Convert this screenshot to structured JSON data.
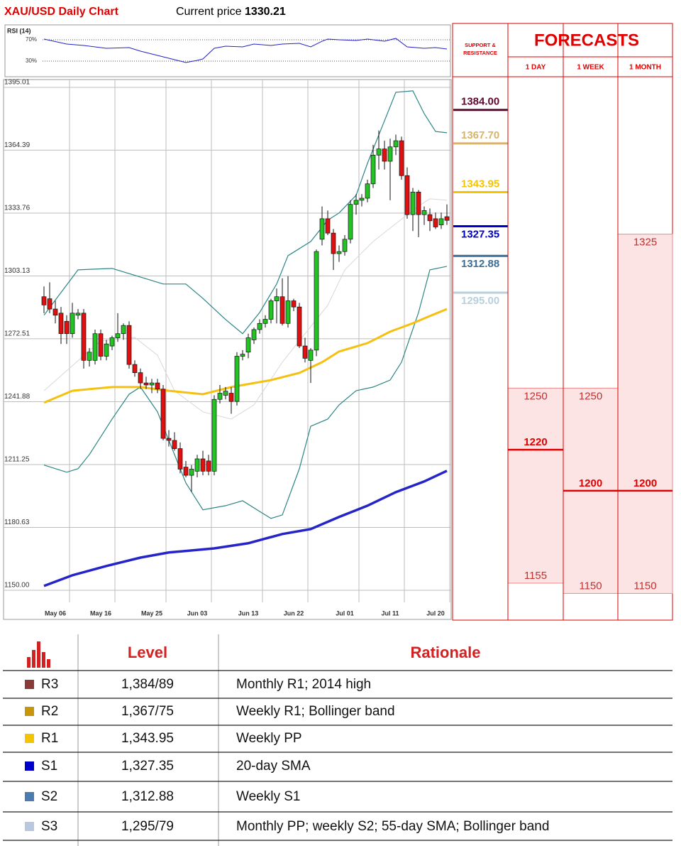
{
  "header": {
    "title": "XAU/USD Daily Chart",
    "current_price_label": "Current price",
    "current_price": 1330.21
  },
  "chart_data": [
    {
      "type": "candlestick",
      "xlim": [
        0,
        71
      ],
      "ylim": [
        1144.1,
        1398.8
      ],
      "yticks": [
        1395.01,
        1364.39,
        1333.76,
        1303.13,
        1272.51,
        1241.88,
        1211.25,
        1180.63,
        {
          "value": 1150,
          "label": "1150.00"
        }
      ],
      "grid": true,
      "up_color": "#22c322",
      "down_color": "#e01010",
      "categories": [
        null,
        null,
        "May 06",
        null,
        null,
        null,
        null,
        null,
        null,
        null,
        "May 16",
        null,
        null,
        null,
        null,
        null,
        null,
        null,
        null,
        "May 25",
        null,
        null,
        null,
        null,
        null,
        null,
        null,
        "Jun 03",
        null,
        null,
        null,
        null,
        null,
        null,
        null,
        null,
        "Jun 13",
        null,
        null,
        null,
        null,
        null,
        null,
        null,
        "Jun 22",
        null,
        null,
        null,
        null,
        null,
        null,
        null,
        null,
        "Jul 01",
        null,
        null,
        null,
        null,
        null,
        null,
        null,
        "Jul 11",
        null,
        null,
        null,
        null,
        null,
        null,
        null,
        "Jul 20",
        null,
        null
      ],
      "open": [
        1293,
        1292,
        1287,
        1285,
        1281,
        1275,
        1284,
        1285,
        1262,
        1262,
        1275,
        1264,
        1269,
        1273,
        1275,
        1279,
        1260,
        1256,
        1251,
        1250,
        1251,
        1248,
        1224,
        1223,
        1219,
        1210,
        1206,
        1208,
        1214,
        1213,
        1208,
        1243,
        1245,
        1246,
        1242,
        1264,
        1266,
        1272,
        1277,
        1280,
        1282,
        1291,
        1293,
        1280,
        1291,
        1288,
        1269,
        1262,
        1267,
        1321,
        1331,
        1324,
        1314,
        1315,
        1321,
        1338,
        1340,
        1341,
        1348,
        1362,
        1365,
        1359,
        1366,
        1369,
        1352,
        1333,
        1344,
        1333,
        1333,
        1331,
        1328,
        1332
      ],
      "high": [
        1298,
        1300,
        1291,
        1288,
        1284,
        1290,
        1287,
        1287,
        1268,
        1277,
        1277,
        1272,
        1274,
        1285,
        1280,
        1281,
        1262,
        1258,
        1254,
        1253,
        1253,
        1250,
        1228,
        1227,
        1222,
        1213,
        1211,
        1216,
        1218,
        1216,
        1245,
        1250,
        1249,
        1249,
        1266,
        1267,
        1275,
        1278,
        1282,
        1284,
        1292,
        1297,
        1302,
        1303,
        1292,
        1290,
        1273,
        1268,
        1316,
        1337,
        1335,
        1326,
        1318,
        1323,
        1340,
        1343,
        1343,
        1350,
        1367,
        1374,
        1369,
        1370,
        1372,
        1371,
        1356,
        1346,
        1345,
        1337,
        1336,
        1334,
        1334,
        1338
      ],
      "low": [
        1285,
        1285,
        1280,
        1270,
        1270,
        1273,
        1282,
        1258,
        1259,
        1260,
        1262,
        1262,
        1267,
        1271,
        1272,
        1258,
        1254,
        1248,
        1248,
        1246,
        1246,
        1223,
        1220,
        1218,
        1207,
        1205,
        1198,
        1205,
        1206,
        1206,
        1206,
        1241,
        1243,
        1236,
        1240,
        1262,
        1263,
        1270,
        1275,
        1278,
        1280,
        1280,
        1279,
        1278,
        1286,
        1268,
        1261,
        1251,
        1264,
        1318,
        1323,
        1306,
        1310,
        1313,
        1319,
        1333,
        1337,
        1339,
        1346,
        1355,
        1355,
        1340,
        1362,
        1350,
        1331,
        1325,
        1322,
        1328,
        1325,
        1326,
        1326,
        1328
      ],
      "close": [
        1289,
        1287,
        1284,
        1275,
        1275,
        1285,
        1285,
        1262,
        1266,
        1275,
        1264,
        1270,
        1273,
        1275,
        1279,
        1260,
        1256,
        1251,
        1250,
        1251,
        1248,
        1224,
        1223,
        1219,
        1209,
        1206,
        1209,
        1214,
        1208,
        1208,
        1243,
        1246,
        1247,
        1242,
        1264,
        1265,
        1273,
        1277,
        1280,
        1282,
        1291,
        1293,
        1280,
        1291,
        1288,
        1269,
        1263,
        1267,
        1315,
        1331,
        1324,
        1314,
        1315,
        1321,
        1338,
        1340,
        1341,
        1348,
        1362,
        1365,
        1359,
        1366,
        1369,
        1352,
        1333,
        1344,
        1333,
        1335,
        1330,
        1327,
        1331,
        1330.21
      ],
      "overlays": [
        {
          "color": "#2b8585",
          "x": [
            0,
            6,
            12,
            21,
            25,
            28,
            32,
            35,
            38,
            41,
            43,
            47,
            50,
            52,
            55,
            57,
            60,
            62,
            65,
            67,
            69,
            71
          ],
          "values": [
            1284,
            1306.1,
            1306.8,
            1299.2,
            1299.2,
            1292.2,
            1281.9,
            1275,
            1285.3,
            1299.2,
            1313,
            1319.9,
            1330.3,
            1333.8,
            1342.4,
            1358,
            1378.7,
            1392.6,
            1393.3,
            1382.2,
            1373.5,
            1372.9
          ]
        },
        {
          "color": "#2b8585",
          "x": [
            0,
            4,
            6,
            8,
            12,
            15,
            17,
            20,
            22,
            25,
            28,
            32,
            35,
            38,
            40,
            42,
            45,
            47,
            50,
            52,
            55,
            58,
            61,
            63,
            66,
            68,
            71
          ],
          "values": [
            1211,
            1207.5,
            1209.2,
            1216.1,
            1233.4,
            1245.5,
            1249,
            1236.9,
            1223,
            1202.3,
            1189.2,
            1191.2,
            1193.6,
            1188.4,
            1185,
            1186.7,
            1209.2,
            1229.9,
            1233.4,
            1240.3,
            1247.2,
            1249,
            1252.4,
            1261.1,
            1285.3,
            1306.1,
            1307.8
          ]
        },
        {
          "color": "#d8d8d8",
          "x": [
            0,
            5,
            10,
            16,
            20,
            23,
            28,
            33,
            37,
            42,
            46,
            50,
            53,
            58,
            62,
            66,
            68,
            71
          ],
          "values": [
            1247.2,
            1259.4,
            1271.5,
            1273.2,
            1264.5,
            1247.2,
            1236.9,
            1233.4,
            1240.3,
            1261.1,
            1275,
            1288.8,
            1306.1,
            1319.9,
            1328.6,
            1337.2,
            1340.7,
            1340
          ]
        },
        {
          "color": "#f5c010",
          "x": [
            0,
            5,
            12,
            17,
            22,
            28,
            33,
            40,
            45,
            49,
            52,
            57,
            61,
            65,
            68,
            71
          ],
          "values": [
            1241.4,
            1247.2,
            1249,
            1249,
            1247.2,
            1245.5,
            1249,
            1252.4,
            1255.9,
            1261.1,
            1266.3,
            1270.4,
            1276,
            1280.1,
            1283.6,
            1287
          ]
        },
        {
          "color": "#2424c8",
          "x": [
            0,
            5,
            11,
            17,
            22,
            30,
            36,
            42,
            47,
            52,
            57,
            62,
            67,
            71
          ],
          "values": [
            1152.1,
            1157.3,
            1161.8,
            1165.9,
            1168.4,
            1170.4,
            1172.9,
            1177.4,
            1179.8,
            1185.7,
            1191.2,
            1197.8,
            1203,
            1208.2
          ]
        }
      ]
    },
    {
      "type": "line",
      "title": "RSI (14)",
      "color": "#2222cc",
      "xlim": [
        0,
        71
      ],
      "ylim": [
        0,
        100
      ],
      "yticks": [
        {
          "value": 70,
          "label": "70%"
        },
        {
          "value": 30,
          "label": "30%"
        }
      ],
      "x": [
        0,
        4,
        7,
        11,
        15,
        17,
        21,
        24,
        25,
        27,
        28,
        30,
        32,
        35,
        37,
        40,
        42,
        45,
        47,
        49,
        50,
        52,
        55,
        57,
        60,
        62,
        64,
        67,
        69,
        71
      ],
      "values": [
        71.3,
        62,
        59.3,
        54,
        55.3,
        48.7,
        38,
        30,
        27.3,
        31.3,
        34,
        54,
        58,
        56.7,
        62,
        59.3,
        62,
        63.3,
        56.7,
        67.3,
        71.3,
        70,
        68.7,
        71.3,
        67.3,
        72.7,
        56.7,
        54,
        55.3,
        52.7
      ]
    }
  ],
  "support_resistance": {
    "title_lines": [
      "SUPPORT &",
      "RESISTANCE"
    ],
    "levels": [
      {
        "value": 1384,
        "label": "1384.00",
        "color": "#5c0a30"
      },
      {
        "value": 1367.7,
        "label": "1367.70",
        "color": "#d9b36a"
      },
      {
        "value": 1343.95,
        "label": "1343.95",
        "color": "#f5c400"
      },
      {
        "value": 1327.35,
        "label": "1327.35",
        "color": "#0000cc"
      },
      {
        "value": 1312.88,
        "label": "1312.88",
        "color": "#3a6e96"
      },
      {
        "value": 1295,
        "label": "1295.00",
        "color": "#b8d0dc"
      }
    ]
  },
  "forecasts": {
    "title": "FORECASTS",
    "ylim": [
      1137,
      1401
    ],
    "color": "#e00000",
    "fill": "#fde4e4",
    "columns": [
      {
        "label": "1 DAY",
        "high": 1250,
        "mid": 1220,
        "low": 1155
      },
      {
        "label": "1 WEEK",
        "high": 1250,
        "mid": 1200,
        "low": 1150
      },
      {
        "label": "1 MONTH",
        "high": 1325,
        "mid": 1200,
        "low": 1150
      }
    ]
  },
  "table": {
    "columns": [
      "Level",
      "Rationale"
    ],
    "rows": [
      {
        "name": "R3",
        "color": "#8b3a3a",
        "level": "1,384/89",
        "rationale": "Monthly R1; 2014 high"
      },
      {
        "name": "R2",
        "color": "#c8960a",
        "level": "1,367/75",
        "rationale": "Weekly R1; Bollinger band"
      },
      {
        "name": "R1",
        "color": "#f5c400",
        "level": "1,343.95",
        "rationale": "Weekly PP"
      },
      {
        "name": "S1",
        "color": "#0000cc",
        "level": "1,327.35",
        "rationale": "20-day SMA"
      },
      {
        "name": "S2",
        "color": "#4a7cb0",
        "level": "1,312.88",
        "rationale": "Weekly S1"
      },
      {
        "name": "S3",
        "color": "#b8c8e0",
        "level": "1,295/79",
        "rationale": "Monthly PP; weekly S2; 55-day SMA; Bollinger band"
      }
    ]
  }
}
